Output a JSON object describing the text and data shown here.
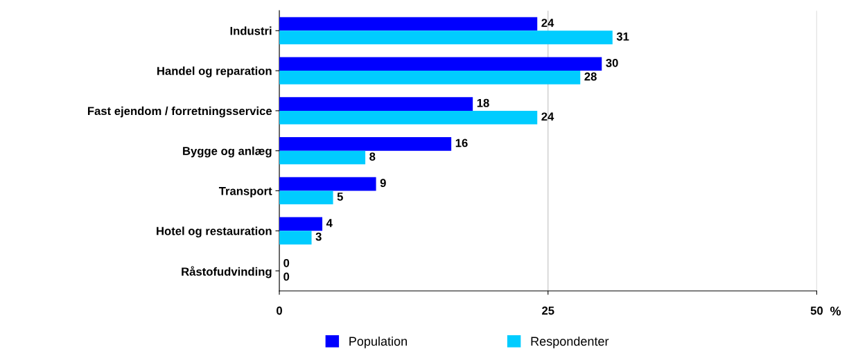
{
  "chart_data": {
    "type": "bar",
    "orientation": "horizontal",
    "categories": [
      "Industri",
      "Handel og reparation",
      "Fast ejendom / forretningsservice",
      "Bygge og anlæg",
      "Transport",
      "Hotel og restauration",
      "Råstofudvinding"
    ],
    "series": [
      {
        "name": "Population",
        "color": "#0000ff",
        "values": [
          24,
          30,
          18,
          16,
          9,
          4,
          0
        ]
      },
      {
        "name": "Respondenter",
        "color": "#00ccff",
        "values": [
          31,
          28,
          24,
          8,
          5,
          3,
          0
        ]
      }
    ],
    "xlabel": "%",
    "xlim": [
      0,
      50
    ],
    "xticks": [
      0,
      25,
      50
    ],
    "grid": "x",
    "legend": "bottom",
    "data_labels": true
  }
}
